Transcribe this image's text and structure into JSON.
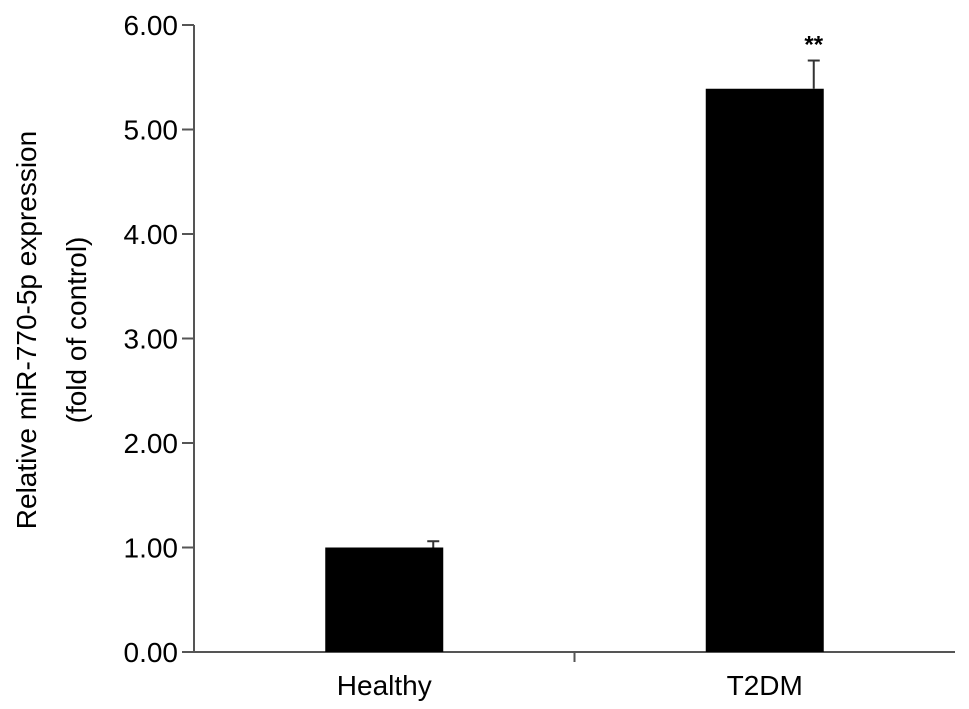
{
  "chart_data": {
    "type": "bar",
    "title": "",
    "xlabel": "",
    "ylabel_lines": [
      "Relative miR-770-5p expression",
      "(fold of control)"
    ],
    "ylim": [
      0,
      6
    ],
    "yticks": [
      0,
      1,
      2,
      3,
      4,
      5,
      6
    ],
    "ytick_labels": [
      "0.00",
      "1.00",
      "2.00",
      "3.00",
      "4.00",
      "5.00",
      "6.00"
    ],
    "categories": [
      "Healthy",
      "T2DM"
    ],
    "values": [
      1.0,
      5.39
    ],
    "errors": [
      0.06,
      0.27
    ],
    "annotations": [
      "",
      "**"
    ],
    "bar_color": "#000000",
    "grid": false,
    "legend": "none"
  }
}
